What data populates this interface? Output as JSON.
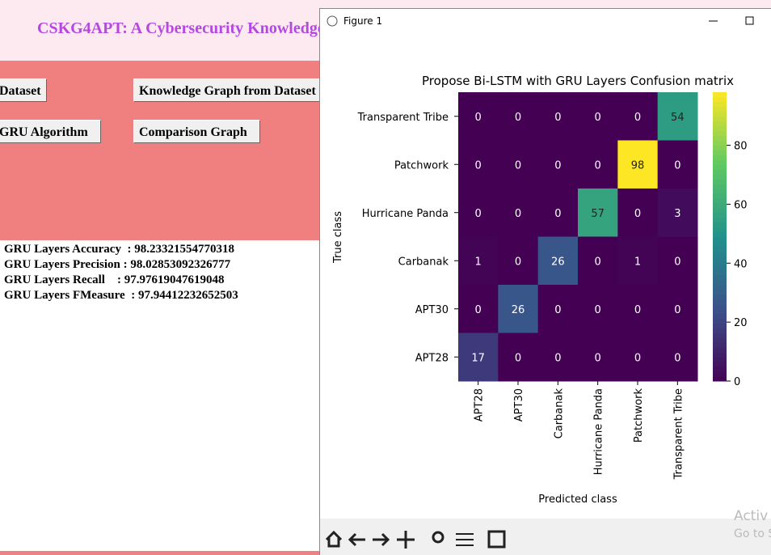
{
  "app": {
    "title": "CSKG4APT: A Cybersecurity Knowledge",
    "buttons": [
      "Dataset",
      "Knowledge Graph from Dataset",
      "GRU Algorithm",
      "Comparison Graph"
    ],
    "results": [
      "GRU Layers Accuracy  : 98.23321554770318",
      "GRU Layers Precision : 98.02853092326777",
      "GRU Layers Recall    : 97.97619047619048",
      "GRU Layers FMeasure  : 97.94412232652503"
    ]
  },
  "window": {
    "title": "Figure 1",
    "watermark": [
      "Activ",
      "Go to S"
    ]
  },
  "chart_data": {
    "type": "heatmap",
    "title": "Propose Bi-LSTM with GRU Layers Confusion matrix",
    "xlabel": "Predicted class",
    "ylabel": "True class",
    "x": [
      "APT28",
      "APT30",
      "Carbanak",
      "Hurricane Panda",
      "Patchwork",
      "Transparent Tribe"
    ],
    "y": [
      "Transparent Tribe",
      "Patchwork",
      "Hurricane Panda",
      "Carbanak",
      "APT30",
      "APT28"
    ],
    "values": [
      [
        0,
        0,
        0,
        0,
        0,
        54
      ],
      [
        0,
        0,
        0,
        0,
        98,
        0
      ],
      [
        0,
        0,
        0,
        57,
        0,
        3
      ],
      [
        1,
        0,
        26,
        0,
        1,
        0
      ],
      [
        0,
        26,
        0,
        0,
        0,
        0
      ],
      [
        17,
        0,
        0,
        0,
        0,
        0
      ]
    ],
    "colormap": "viridis",
    "zlim": [
      0,
      98
    ],
    "zticks": [
      0,
      20,
      40,
      60,
      80
    ]
  }
}
